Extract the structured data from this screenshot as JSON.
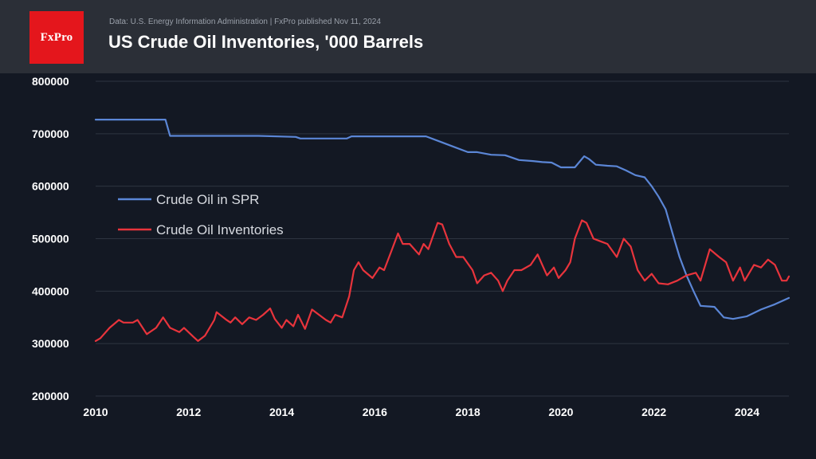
{
  "header": {
    "logo_text": "FxPro",
    "source": "Data: U.S. Energy Information Administration | FxPro published Nov 11, 2024",
    "title": "US Crude Oil Inventories, '000 Barrels"
  },
  "colors": {
    "background": "#131823",
    "header_bg": "#2b2f37",
    "logo_bg": "#e4161c",
    "grid": "#2e3440",
    "axis_text": "#ffffff",
    "spr_line": "#5b86d6",
    "inventories_line": "#e8343c"
  },
  "chart_data": {
    "type": "line",
    "title": "US Crude Oil Inventories, '000 Barrels",
    "xlabel": "",
    "ylabel": "",
    "xlim": [
      2010,
      2024.9
    ],
    "ylim": [
      200000,
      800000
    ],
    "x_ticks": [
      2010,
      2012,
      2014,
      2016,
      2018,
      2020,
      2022,
      2024
    ],
    "x_tick_labels": [
      "2010",
      "2012",
      "2014",
      "2016",
      "2018",
      "2020",
      "2022",
      "2024"
    ],
    "y_ticks": [
      200000,
      300000,
      400000,
      500000,
      600000,
      700000,
      800000
    ],
    "y_tick_labels": [
      "200000",
      "300000",
      "400000",
      "500000",
      "600000",
      "700000",
      "800000"
    ],
    "grid": true,
    "legend_position": "center-left",
    "series": [
      {
        "name": "Crude Oil in SPR",
        "color": "#5b86d6",
        "points": [
          [
            2010.0,
            727000
          ],
          [
            2011.0,
            727000
          ],
          [
            2011.5,
            727000
          ],
          [
            2011.6,
            696000
          ],
          [
            2012.5,
            696000
          ],
          [
            2013.5,
            696000
          ],
          [
            2014.3,
            694000
          ],
          [
            2014.4,
            691000
          ],
          [
            2015.4,
            691000
          ],
          [
            2015.5,
            695000
          ],
          [
            2016.5,
            695000
          ],
          [
            2017.1,
            695000
          ],
          [
            2017.4,
            685000
          ],
          [
            2017.7,
            675000
          ],
          [
            2018.0,
            665000
          ],
          [
            2018.2,
            665000
          ],
          [
            2018.5,
            660000
          ],
          [
            2018.8,
            659000
          ],
          [
            2019.1,
            650000
          ],
          [
            2019.4,
            648000
          ],
          [
            2019.6,
            646000
          ],
          [
            2019.8,
            645000
          ],
          [
            2020.0,
            636000
          ],
          [
            2020.3,
            636000
          ],
          [
            2020.5,
            657000
          ],
          [
            2020.6,
            652000
          ],
          [
            2020.75,
            641000
          ],
          [
            2021.0,
            639000
          ],
          [
            2021.2,
            638000
          ],
          [
            2021.4,
            630000
          ],
          [
            2021.6,
            621000
          ],
          [
            2021.8,
            617000
          ],
          [
            2021.95,
            600000
          ],
          [
            2022.1,
            580000
          ],
          [
            2022.25,
            556000
          ],
          [
            2022.4,
            510000
          ],
          [
            2022.55,
            465000
          ],
          [
            2022.7,
            430000
          ],
          [
            2022.85,
            400000
          ],
          [
            2023.0,
            372000
          ],
          [
            2023.3,
            370000
          ],
          [
            2023.5,
            350000
          ],
          [
            2023.7,
            347000
          ],
          [
            2024.0,
            352000
          ],
          [
            2024.3,
            365000
          ],
          [
            2024.6,
            375000
          ],
          [
            2024.9,
            387000
          ]
        ]
      },
      {
        "name": "Crude Oil Inventories",
        "color": "#e8343c",
        "points": [
          [
            2010.0,
            305000
          ],
          [
            2010.1,
            310000
          ],
          [
            2010.3,
            330000
          ],
          [
            2010.5,
            345000
          ],
          [
            2010.6,
            340000
          ],
          [
            2010.8,
            340000
          ],
          [
            2010.9,
            345000
          ],
          [
            2011.1,
            318000
          ],
          [
            2011.3,
            330000
          ],
          [
            2011.45,
            350000
          ],
          [
            2011.6,
            330000
          ],
          [
            2011.8,
            322000
          ],
          [
            2011.9,
            330000
          ],
          [
            2012.1,
            313000
          ],
          [
            2012.2,
            305000
          ],
          [
            2012.35,
            315000
          ],
          [
            2012.55,
            345000
          ],
          [
            2012.6,
            360000
          ],
          [
            2012.8,
            346000
          ],
          [
            2012.9,
            340000
          ],
          [
            2013.0,
            350000
          ],
          [
            2013.15,
            337000
          ],
          [
            2013.3,
            350000
          ],
          [
            2013.45,
            345000
          ],
          [
            2013.6,
            355000
          ],
          [
            2013.75,
            367000
          ],
          [
            2013.85,
            347000
          ],
          [
            2014.0,
            330000
          ],
          [
            2014.1,
            345000
          ],
          [
            2014.25,
            333000
          ],
          [
            2014.35,
            355000
          ],
          [
            2014.5,
            328000
          ],
          [
            2014.65,
            365000
          ],
          [
            2014.8,
            355000
          ],
          [
            2014.95,
            345000
          ],
          [
            2015.05,
            340000
          ],
          [
            2015.15,
            355000
          ],
          [
            2015.3,
            350000
          ],
          [
            2015.45,
            390000
          ],
          [
            2015.55,
            440000
          ],
          [
            2015.65,
            455000
          ],
          [
            2015.75,
            440000
          ],
          [
            2015.95,
            425000
          ],
          [
            2016.1,
            445000
          ],
          [
            2016.2,
            440000
          ],
          [
            2016.35,
            475000
          ],
          [
            2016.5,
            510000
          ],
          [
            2016.6,
            490000
          ],
          [
            2016.75,
            490000
          ],
          [
            2016.95,
            470000
          ],
          [
            2017.05,
            490000
          ],
          [
            2017.15,
            480000
          ],
          [
            2017.35,
            530000
          ],
          [
            2017.45,
            527000
          ],
          [
            2017.6,
            490000
          ],
          [
            2017.75,
            465000
          ],
          [
            2017.9,
            465000
          ],
          [
            2018.1,
            440000
          ],
          [
            2018.2,
            415000
          ],
          [
            2018.35,
            430000
          ],
          [
            2018.5,
            435000
          ],
          [
            2018.65,
            420000
          ],
          [
            2018.75,
            400000
          ],
          [
            2018.85,
            420000
          ],
          [
            2019.0,
            440000
          ],
          [
            2019.15,
            440000
          ],
          [
            2019.35,
            450000
          ],
          [
            2019.5,
            470000
          ],
          [
            2019.6,
            450000
          ],
          [
            2019.7,
            430000
          ],
          [
            2019.85,
            445000
          ],
          [
            2019.95,
            425000
          ],
          [
            2020.1,
            440000
          ],
          [
            2020.2,
            455000
          ],
          [
            2020.3,
            500000
          ],
          [
            2020.45,
            535000
          ],
          [
            2020.55,
            530000
          ],
          [
            2020.7,
            500000
          ],
          [
            2020.85,
            495000
          ],
          [
            2021.0,
            490000
          ],
          [
            2021.2,
            465000
          ],
          [
            2021.35,
            500000
          ],
          [
            2021.5,
            485000
          ],
          [
            2021.65,
            440000
          ],
          [
            2021.8,
            420000
          ],
          [
            2021.95,
            433000
          ],
          [
            2022.1,
            415000
          ],
          [
            2022.3,
            413000
          ],
          [
            2022.5,
            420000
          ],
          [
            2022.7,
            430000
          ],
          [
            2022.9,
            435000
          ],
          [
            2023.0,
            420000
          ],
          [
            2023.2,
            480000
          ],
          [
            2023.4,
            465000
          ],
          [
            2023.55,
            455000
          ],
          [
            2023.7,
            420000
          ],
          [
            2023.85,
            445000
          ],
          [
            2023.95,
            420000
          ],
          [
            2024.15,
            450000
          ],
          [
            2024.3,
            445000
          ],
          [
            2024.45,
            460000
          ],
          [
            2024.6,
            450000
          ],
          [
            2024.75,
            420000
          ],
          [
            2024.85,
            420000
          ],
          [
            2024.9,
            428000
          ]
        ]
      }
    ]
  }
}
